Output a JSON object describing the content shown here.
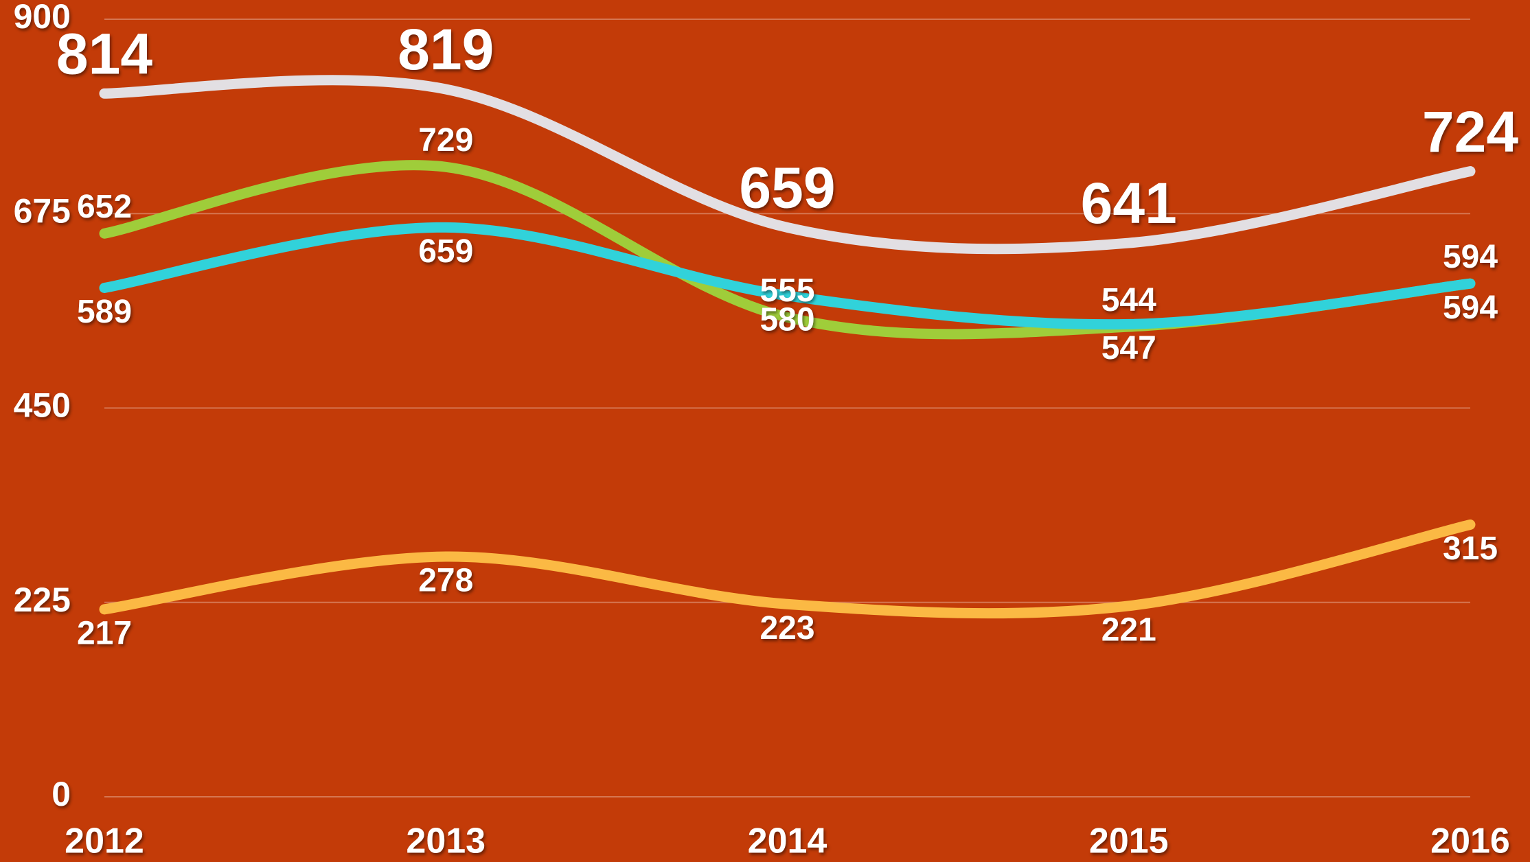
{
  "chart_data": {
    "type": "line",
    "categories": [
      "2012",
      "2013",
      "2014",
      "2015",
      "2016"
    ],
    "series": [
      {
        "color": "#e2dfe3",
        "values": [
          814,
          819,
          659,
          641,
          724
        ],
        "label_position": "above",
        "label_size": "large"
      },
      {
        "color": "#9fcd3a",
        "values": [
          652,
          729,
          555,
          544,
          594
        ],
        "label_position": "above",
        "label_size": "small"
      },
      {
        "color": "#31d2da",
        "values": [
          589,
          659,
          580,
          547,
          594
        ],
        "label_position": "below",
        "label_size": "small"
      },
      {
        "color": "#fbb944",
        "values": [
          217,
          278,
          223,
          221,
          315
        ],
        "label_position": "below",
        "label_size": "small"
      }
    ],
    "ylim": [
      0,
      900
    ],
    "yticks": [
      0,
      225,
      450,
      675,
      900
    ],
    "grid": true,
    "smooth": true
  }
}
